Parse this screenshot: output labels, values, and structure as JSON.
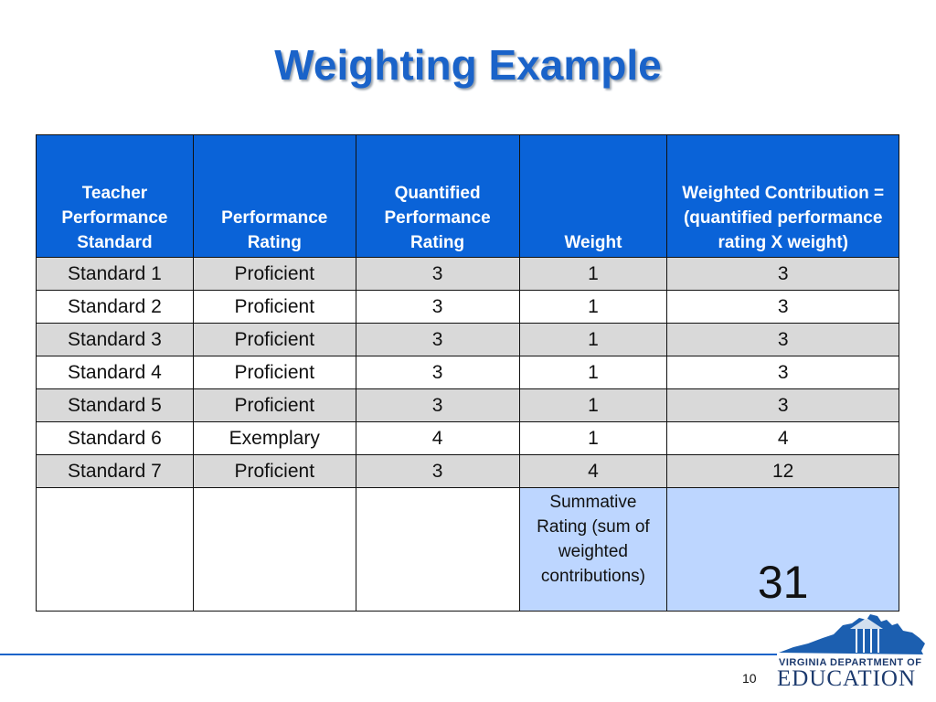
{
  "slide": {
    "title": "Weighting Example",
    "page_number": "10"
  },
  "table": {
    "headers": [
      "Teacher Performance Standard",
      "Performance Rating",
      "Quantified Performance Rating",
      "Weight",
      "Weighted Contribution = (quantified performance rating X weight)"
    ],
    "rows": [
      [
        "Standard 1",
        "Proficient",
        "3",
        "1",
        "3"
      ],
      [
        "Standard 2",
        "Proficient",
        "3",
        "1",
        "3"
      ],
      [
        "Standard 3",
        "Proficient",
        "3",
        "1",
        "3"
      ],
      [
        "Standard 4",
        "Proficient",
        "3",
        "1",
        "3"
      ],
      [
        "Standard 5",
        "Proficient",
        "3",
        "1",
        "3"
      ],
      [
        "Standard 6",
        "Exemplary",
        "4",
        "1",
        "4"
      ],
      [
        "Standard 7",
        "Proficient",
        "3",
        "4",
        "12"
      ]
    ],
    "summary_label": "Summative Rating (sum of weighted contributions)",
    "summary_value": "31"
  },
  "logo": {
    "line1": "VIRGINIA DEPARTMENT OF",
    "line2": "EDUCATION"
  },
  "colors": {
    "title": "#1a63c9",
    "header_bg": "#0a63d8",
    "row_shade": "#d9d9d9",
    "summary_bg": "#bdd6ff",
    "logo": "#1c3a6e"
  }
}
